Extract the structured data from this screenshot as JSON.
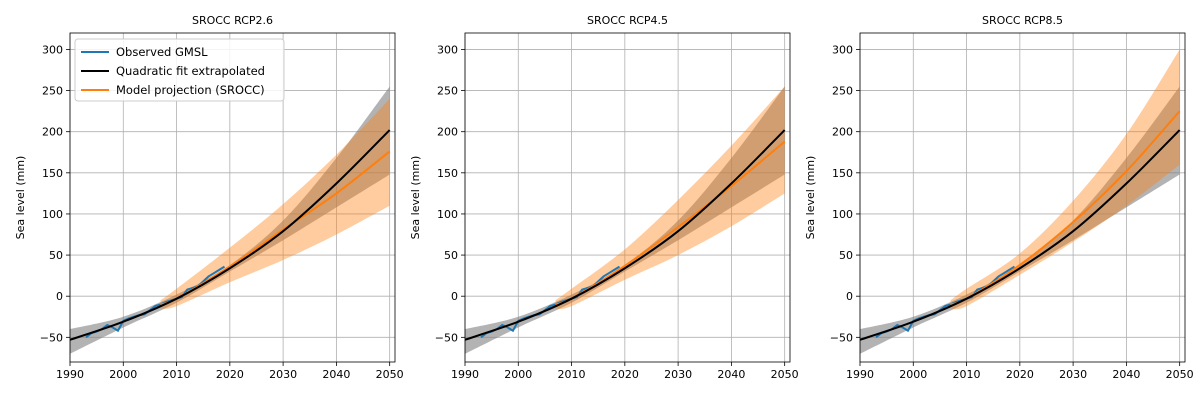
{
  "chart_data": [
    {
      "type": "line",
      "title": "SROCC RCP2.6",
      "xlabel": "",
      "ylabel": "Sea level (mm)",
      "xlim": [
        1990,
        2051
      ],
      "ylim": [
        -80,
        320
      ],
      "xticks": [
        1990,
        2000,
        2010,
        2020,
        2030,
        2040,
        2050
      ],
      "yticks": [
        -50,
        0,
        50,
        100,
        150,
        200,
        250,
        300
      ],
      "grid": true,
      "legend": "top-left",
      "series": [
        {
          "name": "Observed GMSL",
          "color": "#1f77b4",
          "x": [
            1993,
            1994,
            1995,
            1996,
            1997,
            1998,
            1999,
            2000,
            2001,
            2002,
            2003,
            2004,
            2005,
            2006,
            2007,
            2008,
            2009,
            2010,
            2011,
            2012,
            2013,
            2014,
            2015,
            2016,
            2017,
            2018,
            2019
          ],
          "y": [
            -50,
            -45,
            -43,
            -40,
            -35,
            -38,
            -42,
            -30,
            -27,
            -25,
            -23,
            -22,
            -17,
            -12,
            -10,
            -7,
            -5,
            -3,
            -1,
            8,
            10,
            12,
            18,
            24,
            28,
            32,
            36
          ]
        },
        {
          "name": "Quadratic fit extrapolated",
          "color": "#000000",
          "x": [
            1990,
            2000,
            2010,
            2020,
            2030,
            2040,
            2050
          ],
          "y": [
            -53,
            -31,
            -3,
            34,
            79,
            137,
            202
          ],
          "band_lower": [
            -70,
            -38,
            -8,
            30,
            68,
            108,
            148
          ],
          "band_upper": [
            -40,
            -25,
            2,
            38,
            92,
            168,
            255
          ]
        },
        {
          "name": "Model projection (SROCC)",
          "color": "#ff7f0e",
          "x": [
            2007,
            2010,
            2020,
            2030,
            2040,
            2050
          ],
          "y": [
            -10,
            -3,
            36,
            81,
            125,
            176
          ],
          "band_lower": [
            -15,
            -12,
            17,
            44,
            75,
            110
          ],
          "band_upper": [
            -5,
            9,
            59,
            112,
            172,
            240
          ]
        }
      ]
    },
    {
      "type": "line",
      "title": "SROCC RCP4.5",
      "xlabel": "",
      "ylabel": "Sea level (mm)",
      "xlim": [
        1990,
        2051
      ],
      "ylim": [
        -80,
        320
      ],
      "xticks": [
        1990,
        2000,
        2010,
        2020,
        2030,
        2040,
        2050
      ],
      "yticks": [
        -50,
        0,
        50,
        100,
        150,
        200,
        250,
        300
      ],
      "grid": true,
      "series": [
        {
          "name": "Observed GMSL",
          "color": "#1f77b4",
          "x": [
            1993,
            1994,
            1995,
            1996,
            1997,
            1998,
            1999,
            2000,
            2001,
            2002,
            2003,
            2004,
            2005,
            2006,
            2007,
            2008,
            2009,
            2010,
            2011,
            2012,
            2013,
            2014,
            2015,
            2016,
            2017,
            2018,
            2019
          ],
          "y": [
            -50,
            -45,
            -43,
            -40,
            -35,
            -38,
            -42,
            -30,
            -27,
            -25,
            -23,
            -22,
            -17,
            -12,
            -10,
            -7,
            -5,
            -3,
            -1,
            8,
            10,
            12,
            18,
            24,
            28,
            32,
            36
          ]
        },
        {
          "name": "Quadratic fit extrapolated",
          "color": "#000000",
          "x": [
            1990,
            2000,
            2010,
            2020,
            2030,
            2040,
            2050
          ],
          "y": [
            -53,
            -31,
            -3,
            34,
            79,
            137,
            202
          ],
          "band_lower": [
            -70,
            -38,
            -8,
            30,
            68,
            108,
            148
          ],
          "band_upper": [
            -40,
            -25,
            2,
            38,
            92,
            168,
            255
          ]
        },
        {
          "name": "Model projection (SROCC)",
          "color": "#ff7f0e",
          "x": [
            2007,
            2010,
            2020,
            2030,
            2040,
            2050
          ],
          "y": [
            -10,
            -3,
            37,
            84,
            134,
            188
          ],
          "band_lower": [
            -15,
            -12,
            20,
            50,
            85,
            125
          ],
          "band_upper": [
            -5,
            9,
            57,
            117,
            183,
            255
          ]
        }
      ]
    },
    {
      "type": "line",
      "title": "SROCC RCP8.5",
      "xlabel": "",
      "ylabel": "Sea level (mm)",
      "xlim": [
        1990,
        2051
      ],
      "ylim": [
        -80,
        320
      ],
      "xticks": [
        1990,
        2000,
        2010,
        2020,
        2030,
        2040,
        2050
      ],
      "yticks": [
        -50,
        0,
        50,
        100,
        150,
        200,
        250,
        300
      ],
      "grid": true,
      "series": [
        {
          "name": "Observed GMSL",
          "color": "#1f77b4",
          "x": [
            1993,
            1994,
            1995,
            1996,
            1997,
            1998,
            1999,
            2000,
            2001,
            2002,
            2003,
            2004,
            2005,
            2006,
            2007,
            2008,
            2009,
            2010,
            2011,
            2012,
            2013,
            2014,
            2015,
            2016,
            2017,
            2018,
            2019
          ],
          "y": [
            -50,
            -45,
            -43,
            -40,
            -35,
            -38,
            -42,
            -30,
            -27,
            -25,
            -23,
            -22,
            -17,
            -12,
            -10,
            -7,
            -5,
            -3,
            -1,
            8,
            10,
            12,
            18,
            24,
            28,
            32,
            36
          ]
        },
        {
          "name": "Quadratic fit extrapolated",
          "color": "#000000",
          "x": [
            1990,
            2000,
            2010,
            2020,
            2030,
            2040,
            2050
          ],
          "y": [
            -53,
            -31,
            -3,
            34,
            79,
            137,
            202
          ],
          "band_lower": [
            -70,
            -38,
            -8,
            30,
            68,
            108,
            148
          ],
          "band_upper": [
            -40,
            -25,
            2,
            38,
            92,
            168,
            255
          ]
        },
        {
          "name": "Model projection (SROCC)",
          "color": "#ff7f0e",
          "x": [
            2007,
            2010,
            2020,
            2030,
            2040,
            2050
          ],
          "y": [
            -10,
            -3,
            38,
            90,
            152,
            225
          ],
          "band_lower": [
            -15,
            -12,
            26,
            66,
            110,
            160
          ],
          "band_upper": [
            -5,
            9,
            52,
            116,
            197,
            300
          ]
        }
      ]
    }
  ]
}
